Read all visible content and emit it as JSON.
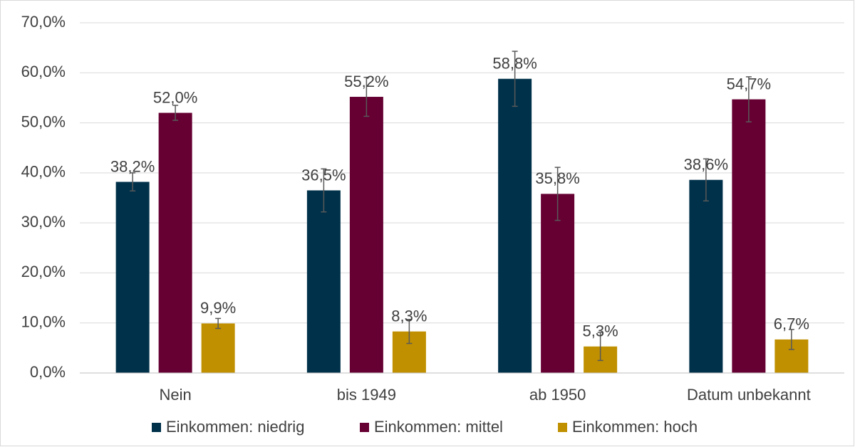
{
  "chart_data": {
    "type": "bar",
    "categories": [
      "Nein",
      "bis 1949",
      "ab 1950",
      "Datum unbekannt"
    ],
    "series": [
      {
        "name": "Einkommen: niedrig",
        "color": "#00314a",
        "values": [
          38.2,
          36.5,
          58.8,
          38.6
        ],
        "errors": [
          1.8,
          4.3,
          5.5,
          4.2
        ],
        "value_labels": [
          "38,2%",
          "36,5%",
          "58,8%",
          "38,6%"
        ]
      },
      {
        "name": "Einkommen: mittel",
        "color": "#660033",
        "values": [
          52.0,
          55.2,
          35.8,
          54.7
        ],
        "errors": [
          1.5,
          3.9,
          5.3,
          4.5
        ],
        "value_labels": [
          "52,0%",
          "55,2%",
          "35,8%",
          "54,7%"
        ]
      },
      {
        "name": "Einkommen: hoch",
        "color": "#c09000",
        "values": [
          9.9,
          8.3,
          5.3,
          6.7
        ],
        "errors": [
          1.0,
          2.4,
          2.8,
          2.0
        ],
        "value_labels": [
          "9,9%",
          "8,3%",
          "5,3%",
          "6,7%"
        ]
      }
    ],
    "ylim": [
      0,
      70
    ],
    "yticks": [
      {
        "value": 0,
        "label": "0,0%"
      },
      {
        "value": 10,
        "label": "10,0%"
      },
      {
        "value": 20,
        "label": "20,0%"
      },
      {
        "value": 30,
        "label": "30,0%"
      },
      {
        "value": 40,
        "label": "40,0%"
      },
      {
        "value": 50,
        "label": "50,0%"
      },
      {
        "value": 60,
        "label": "60,0%"
      },
      {
        "value": 70,
        "label": "70,0%"
      }
    ],
    "grid": true,
    "legend": "bottom"
  }
}
